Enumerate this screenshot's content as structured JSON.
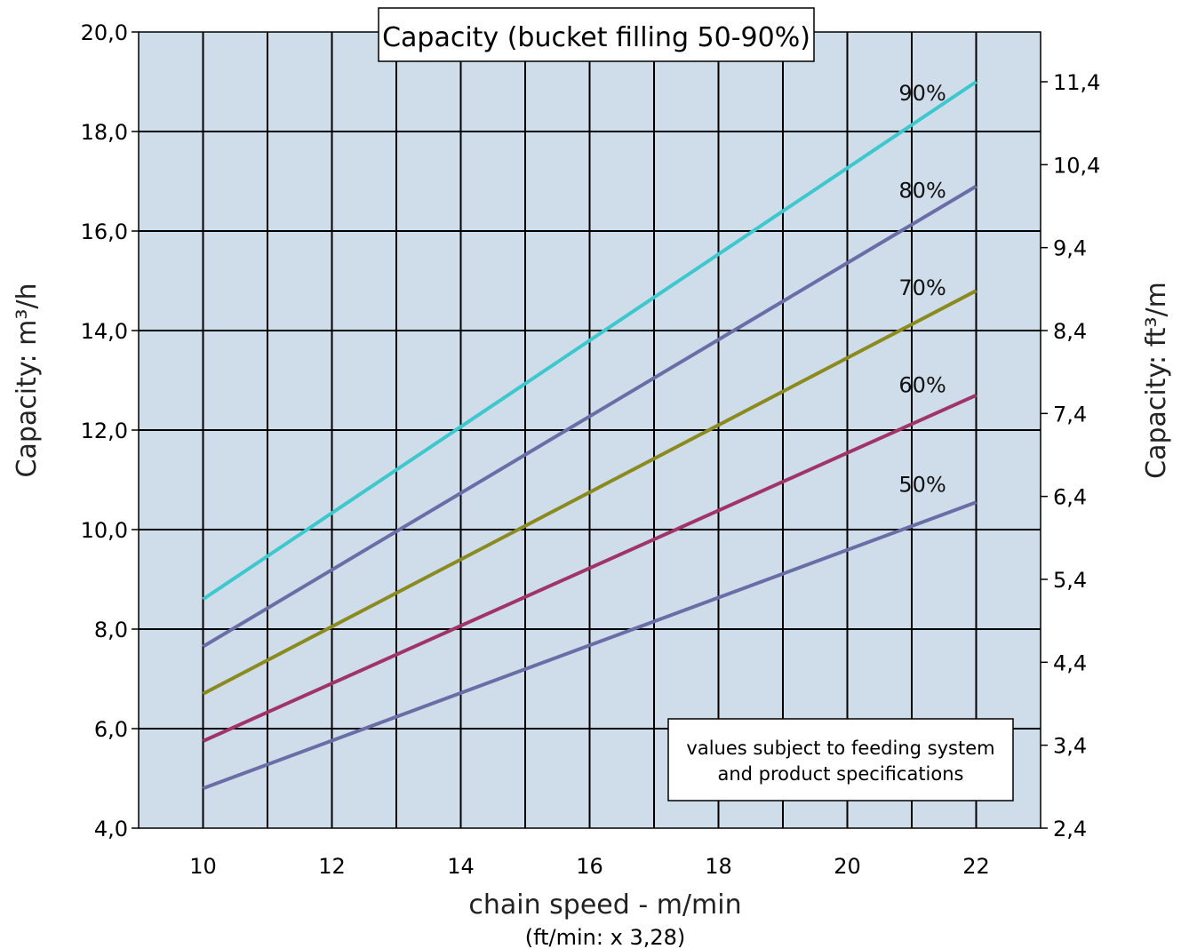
{
  "chart_data": {
    "type": "line",
    "title": "Capacity (bucket filling 50-90%)",
    "xlabel": "chain speed - m/min",
    "xlabel_sub": "(ft/min: x 3,28)",
    "ylabel": "Capacity: m³/h",
    "ylabel_right": "Capacity: ft³/m",
    "xlim": [
      9,
      23
    ],
    "ylim": [
      4,
      20
    ],
    "x_ticks": [
      10,
      12,
      14,
      16,
      18,
      20,
      22
    ],
    "y_ticks": [
      4,
      6,
      8,
      10,
      12,
      14,
      16,
      18,
      20
    ],
    "y_tick_labels": [
      "4,0",
      "6,0",
      "8,0",
      "10,0",
      "12,0",
      "14,0",
      "16,0",
      "18,0",
      "20,0"
    ],
    "y_right_ticks": [
      2.4,
      3.4,
      4.4,
      5.4,
      6.4,
      7.4,
      8.4,
      9.4,
      10.4,
      11.4
    ],
    "y_right_tick_labels": [
      "2,4",
      "3,4",
      "4,4",
      "5,4",
      "6,4",
      "7,4",
      "8,4",
      "9,4",
      "10,4",
      "11,4"
    ],
    "y_right_lim": [
      2.4,
      12.0
    ],
    "grid": true,
    "series": [
      {
        "name": "90%",
        "color": "#3cc8cc",
        "x": [
          10,
          22
        ],
        "values": [
          8.6,
          19.0
        ]
      },
      {
        "name": "80%",
        "color": "#6a6ea6",
        "x": [
          10,
          22
        ],
        "values": [
          7.65,
          16.9
        ]
      },
      {
        "name": "70%",
        "color": "#8a8a1e",
        "x": [
          10,
          22
        ],
        "values": [
          6.7,
          14.8
        ]
      },
      {
        "name": "60%",
        "color": "#a03468",
        "x": [
          10,
          22
        ],
        "values": [
          5.75,
          12.7
        ]
      },
      {
        "name": "50%",
        "color": "#6a6ea6",
        "x": [
          10,
          22
        ],
        "values": [
          4.8,
          10.55
        ]
      }
    ],
    "annotation": [
      "values subject to feeding system",
      "and product specifications"
    ]
  },
  "colors": {
    "plot_background": "#cfdcea",
    "grid": "#000000"
  }
}
